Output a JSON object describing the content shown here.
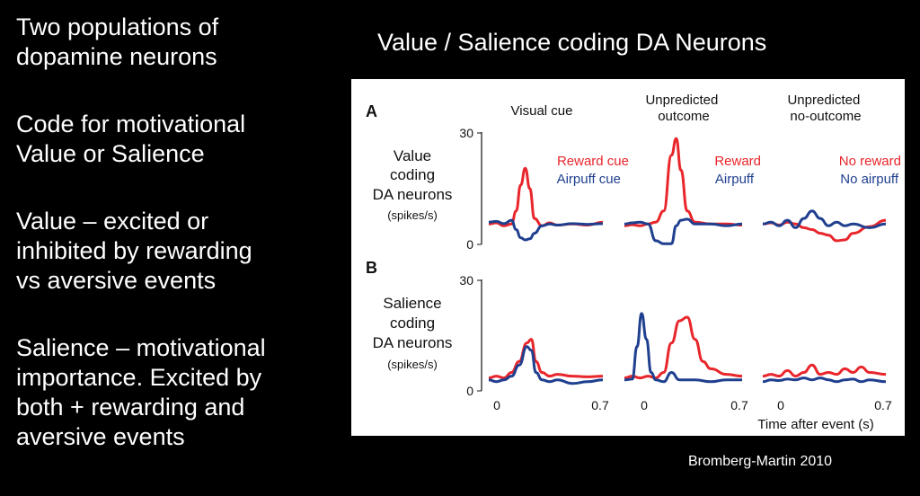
{
  "slide": {
    "title": "Value / Salience coding DA Neurons",
    "bullets": [
      "Two populations of\ndopamine neurons",
      "Code for motivational\nValue or Salience",
      "Value – excited or\ninhibited by rewarding\nvs aversive events",
      "Salience – motivational\nimportance.  Excited by\nboth + rewarding and\naversive events"
    ],
    "citation": "Bromberg-Martin 2010"
  },
  "figure": {
    "colors": {
      "red": "#e8262b",
      "blue": "#1f3f8f"
    },
    "columns": [
      "Visual cue",
      "Unpredicted\noutcome",
      "Unpredicted\nno-outcome"
    ],
    "panels": [
      {
        "letter": "A",
        "label": [
          "Value",
          "coding",
          "DA neurons",
          "(spikes/s)"
        ],
        "y_max": "30",
        "y_min": "0",
        "legends": [
          {
            "red": "Reward cue",
            "blue": "Airpuff cue"
          },
          {
            "red": "Reward",
            "blue": "Airpuff"
          },
          {
            "red": "No reward",
            "blue": "No airpuff"
          }
        ]
      },
      {
        "letter": "B",
        "label": [
          "Salience",
          "coding",
          "DA neurons",
          "(spikes/s)"
        ],
        "y_max": "30",
        "y_min": "0",
        "legends": []
      }
    ],
    "x_tick_start": "0",
    "x_tick_end": "0.7",
    "x_label": "Time after event (s)"
  },
  "chart_data": {
    "type": "line",
    "x_unit": "s",
    "y_unit": "spikes/s",
    "xlim": [
      -0.05,
      0.7
    ],
    "ylim": [
      0,
      30
    ],
    "panels": [
      {
        "panel": "A",
        "columns": [
          {
            "column": "Visual cue",
            "series": [
              {
                "name": "Reward cue",
                "color": "#e8262b",
                "x": [
                  -0.05,
                  0.0,
                  0.05,
                  0.1,
                  0.13,
                  0.16,
                  0.19,
                  0.22,
                  0.25,
                  0.3,
                  0.35,
                  0.4,
                  0.5,
                  0.6,
                  0.7
                ],
                "y": [
                  5.5,
                  5.8,
                  5.0,
                  5.5,
                  9,
                  16,
                  20.5,
                  15,
                  7,
                  5,
                  5.8,
                  5.2,
                  5.5,
                  5.2,
                  6
                ]
              },
              {
                "name": "Airpuff cue",
                "color": "#1f3f8f",
                "x": [
                  -0.05,
                  0.0,
                  0.05,
                  0.1,
                  0.13,
                  0.16,
                  0.19,
                  0.22,
                  0.25,
                  0.3,
                  0.35,
                  0.4,
                  0.5,
                  0.6,
                  0.7
                ],
                "y": [
                  6,
                  6.2,
                  5.6,
                  6.5,
                  4,
                  1.8,
                  1.2,
                  1.5,
                  3,
                  5,
                  5.5,
                  5.2,
                  5.6,
                  5.4,
                  5.6
                ]
              }
            ]
          },
          {
            "column": "Unpredicted\noutcome",
            "series": [
              {
                "name": "Reward",
                "color": "#e8262b",
                "x": [
                  -0.05,
                  0.0,
                  0.05,
                  0.1,
                  0.15,
                  0.2,
                  0.25,
                  0.28,
                  0.31,
                  0.35,
                  0.4,
                  0.5,
                  0.6,
                  0.7
                ],
                "y": [
                  5,
                  5.3,
                  5,
                  5.5,
                  6,
                  9,
                  24,
                  28.5,
                  20,
                  9,
                  6,
                  5.5,
                  5.5,
                  5.2
                ]
              },
              {
                "name": "Airpuff",
                "color": "#1f3f8f",
                "x": [
                  -0.05,
                  0.0,
                  0.05,
                  0.1,
                  0.15,
                  0.2,
                  0.25,
                  0.28,
                  0.31,
                  0.35,
                  0.4,
                  0.5,
                  0.6,
                  0.7
                ],
                "y": [
                  5.5,
                  5.8,
                  6,
                  5.5,
                  1,
                  0.2,
                  0.2,
                  5,
                  6.5,
                  6.8,
                  5.5,
                  5.5,
                  5,
                  5.5
                ]
              }
            ]
          },
          {
            "column": "Unpredicted\nno-outcome",
            "series": [
              {
                "name": "No reward",
                "color": "#e8262b",
                "x": [
                  -0.05,
                  0.0,
                  0.05,
                  0.1,
                  0.15,
                  0.2,
                  0.25,
                  0.3,
                  0.35,
                  0.4,
                  0.45,
                  0.5,
                  0.6,
                  0.7
                ],
                "y": [
                  5.5,
                  5.8,
                  5.2,
                  6,
                  5.5,
                  4.5,
                  4,
                  3,
                  2.5,
                  1,
                  1.2,
                  3,
                  4.8,
                  6.5
                ]
              },
              {
                "name": "No airpuff",
                "color": "#1f3f8f",
                "x": [
                  -0.05,
                  0.0,
                  0.05,
                  0.1,
                  0.15,
                  0.2,
                  0.25,
                  0.3,
                  0.35,
                  0.4,
                  0.45,
                  0.5,
                  0.6,
                  0.7
                ],
                "y": [
                  5.5,
                  6,
                  5,
                  6.5,
                  4.5,
                  7,
                  9,
                  7,
                  5,
                  6,
                  5,
                  5.5,
                  4.5,
                  5.5
                ]
              }
            ]
          }
        ]
      },
      {
        "panel": "B",
        "columns": [
          {
            "column": "Visual cue",
            "series": [
              {
                "name": "Reward cue",
                "color": "#e8262b",
                "x": [
                  -0.05,
                  0.0,
                  0.05,
                  0.1,
                  0.15,
                  0.2,
                  0.23,
                  0.26,
                  0.3,
                  0.35,
                  0.4,
                  0.5,
                  0.6,
                  0.7
                ],
                "y": [
                  3.5,
                  4,
                  3.5,
                  5,
                  8,
                  13,
                  14,
                  8,
                  5,
                  4,
                  4.5,
                  4,
                  3.8,
                  4
                ]
              },
              {
                "name": "Airpuff cue",
                "color": "#1f3f8f",
                "x": [
                  -0.05,
                  0.0,
                  0.05,
                  0.1,
                  0.15,
                  0.2,
                  0.23,
                  0.26,
                  0.3,
                  0.35,
                  0.4,
                  0.5,
                  0.6,
                  0.7
                ],
                "y": [
                  3,
                  2.5,
                  3,
                  4,
                  7,
                  12,
                  11,
                  5,
                  3,
                  2.5,
                  3,
                  2,
                  2.5,
                  3
                ]
              }
            ]
          },
          {
            "column": "Unpredicted\noutcome",
            "series": [
              {
                "name": "Reward",
                "color": "#e8262b",
                "x": [
                  -0.05,
                  0.0,
                  0.05,
                  0.1,
                  0.15,
                  0.2,
                  0.25,
                  0.3,
                  0.35,
                  0.4,
                  0.45,
                  0.5,
                  0.6,
                  0.7
                ],
                "y": [
                  3.5,
                  4,
                  3.5,
                  4,
                  3.5,
                  5,
                  13,
                  19,
                  20,
                  14,
                  8,
                  6,
                  4.5,
                  4
                ]
              },
              {
                "name": "Airpuff",
                "color": "#1f3f8f",
                "x": [
                  -0.05,
                  0.0,
                  0.03,
                  0.06,
                  0.09,
                  0.12,
                  0.15,
                  0.2,
                  0.25,
                  0.3,
                  0.4,
                  0.5,
                  0.6,
                  0.7
                ],
                "y": [
                  3,
                  3.2,
                  12,
                  21,
                  14,
                  5,
                  3,
                  2.5,
                  5,
                  3,
                  3,
                  2.5,
                  3,
                  3
                ]
              }
            ]
          },
          {
            "column": "Unpredicted\nno-outcome",
            "series": [
              {
                "name": "No reward",
                "color": "#e8262b",
                "x": [
                  -0.05,
                  0.0,
                  0.05,
                  0.1,
                  0.15,
                  0.2,
                  0.25,
                  0.3,
                  0.35,
                  0.4,
                  0.45,
                  0.5,
                  0.55,
                  0.6,
                  0.7
                ],
                "y": [
                  4,
                  4.5,
                  4,
                  5.5,
                  4,
                  5,
                  7,
                  4.5,
                  5,
                  4.5,
                  6,
                  5,
                  6.5,
                  5,
                  4.5
                ]
              },
              {
                "name": "No airpuff",
                "color": "#1f3f8f",
                "x": [
                  -0.05,
                  0.0,
                  0.05,
                  0.1,
                  0.15,
                  0.2,
                  0.25,
                  0.3,
                  0.35,
                  0.4,
                  0.45,
                  0.5,
                  0.55,
                  0.6,
                  0.7
                ],
                "y": [
                  2.5,
                  3,
                  2.8,
                  3.2,
                  3,
                  3.5,
                  3,
                  3.5,
                  3,
                  2.5,
                  3,
                  3.2,
                  2.5,
                  3,
                  2.5
                ]
              }
            ]
          }
        ]
      }
    ]
  }
}
